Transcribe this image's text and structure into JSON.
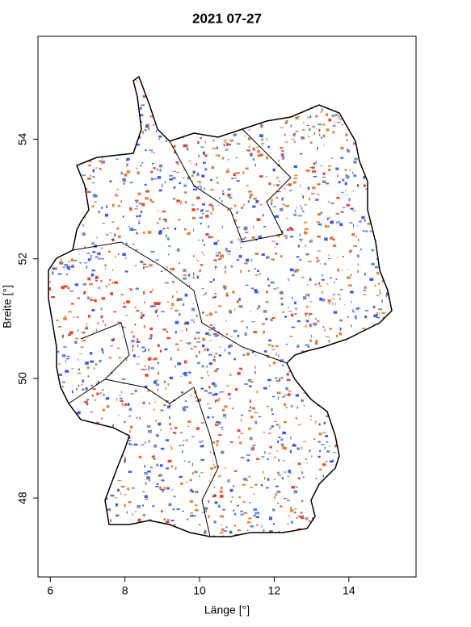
{
  "chart_data": {
    "type": "map",
    "title": "2021 07-27",
    "x_label": "Länge [°]",
    "y_label": "Breite [°]",
    "xlim": [
      5.67,
      15.8
    ],
    "ylim": [
      46.68,
      55.72
    ],
    "xticks": [
      6,
      8,
      10,
      12,
      14
    ],
    "yticks": [
      48,
      50,
      52,
      54
    ]
  }
}
